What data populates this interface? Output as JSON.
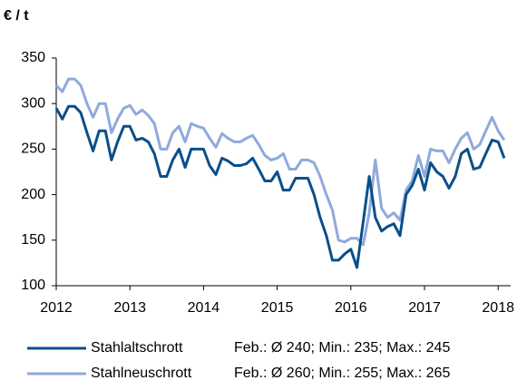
{
  "chart_data": {
    "type": "line",
    "unit_label": "€ / t",
    "x": [
      2012,
      2012.083,
      2012.167,
      2012.25,
      2012.333,
      2012.417,
      2012.5,
      2012.583,
      2012.667,
      2012.75,
      2012.833,
      2012.917,
      2013,
      2013.083,
      2013.167,
      2013.25,
      2013.333,
      2013.417,
      2013.5,
      2013.583,
      2013.667,
      2013.75,
      2013.833,
      2013.917,
      2014,
      2014.083,
      2014.167,
      2014.25,
      2014.333,
      2014.417,
      2014.5,
      2014.583,
      2014.667,
      2014.75,
      2014.833,
      2014.917,
      2015,
      2015.083,
      2015.167,
      2015.25,
      2015.333,
      2015.417,
      2015.5,
      2015.583,
      2015.667,
      2015.75,
      2015.833,
      2015.917,
      2016,
      2016.083,
      2016.167,
      2016.25,
      2016.333,
      2016.417,
      2016.5,
      2016.583,
      2016.667,
      2016.75,
      2016.833,
      2016.917,
      2017,
      2017.083,
      2017.167,
      2017.25,
      2017.333,
      2017.417,
      2017.5,
      2017.583,
      2017.667,
      2017.75,
      2017.833,
      2017.917,
      2018,
      2018.083
    ],
    "series": [
      {
        "name": "Stahlaltschrott",
        "note": "Feb.: Ø 240; Min.: 235; Max.: 245",
        "color": "#0a4f8a",
        "values": [
          295,
          283,
          297,
          297,
          290,
          268,
          248,
          270,
          270,
          238,
          258,
          275,
          275,
          260,
          262,
          258,
          245,
          220,
          220,
          238,
          250,
          230,
          250,
          250,
          250,
          232,
          222,
          240,
          237,
          232,
          232,
          234,
          240,
          228,
          215,
          215,
          225,
          205,
          205,
          218,
          218,
          218,
          200,
          175,
          155,
          128,
          128,
          135,
          140,
          120,
          170,
          220,
          175,
          160,
          165,
          168,
          155,
          200,
          210,
          228,
          205,
          235,
          225,
          220,
          207,
          220,
          245,
          250,
          228,
          230,
          245,
          260,
          258,
          240
        ]
      },
      {
        "name": "Stahlneuschrott",
        "note": "Feb.: Ø 260; Min.: 255; Max.: 265",
        "color": "#8faadc",
        "values": [
          320,
          313,
          327,
          327,
          320,
          300,
          285,
          300,
          300,
          268,
          283,
          295,
          298,
          288,
          293,
          287,
          278,
          250,
          250,
          268,
          275,
          258,
          278,
          275,
          273,
          262,
          252,
          267,
          262,
          258,
          258,
          262,
          265,
          255,
          243,
          238,
          240,
          245,
          228,
          228,
          238,
          238,
          235,
          220,
          200,
          183,
          150,
          148,
          152,
          152,
          145,
          180,
          238,
          185,
          175,
          180,
          172,
          205,
          215,
          243,
          220,
          250,
          248,
          248,
          235,
          250,
          262,
          268,
          250,
          255,
          270,
          285,
          270,
          260
        ]
      }
    ],
    "xlim": [
      2012,
      2018.17
    ],
    "xticks": [
      2012,
      2013,
      2014,
      2015,
      2016,
      2017,
      2018
    ],
    "ylim": [
      100,
      350
    ],
    "yticks": [
      100,
      150,
      200,
      250,
      300,
      350
    ],
    "grid": false
  }
}
